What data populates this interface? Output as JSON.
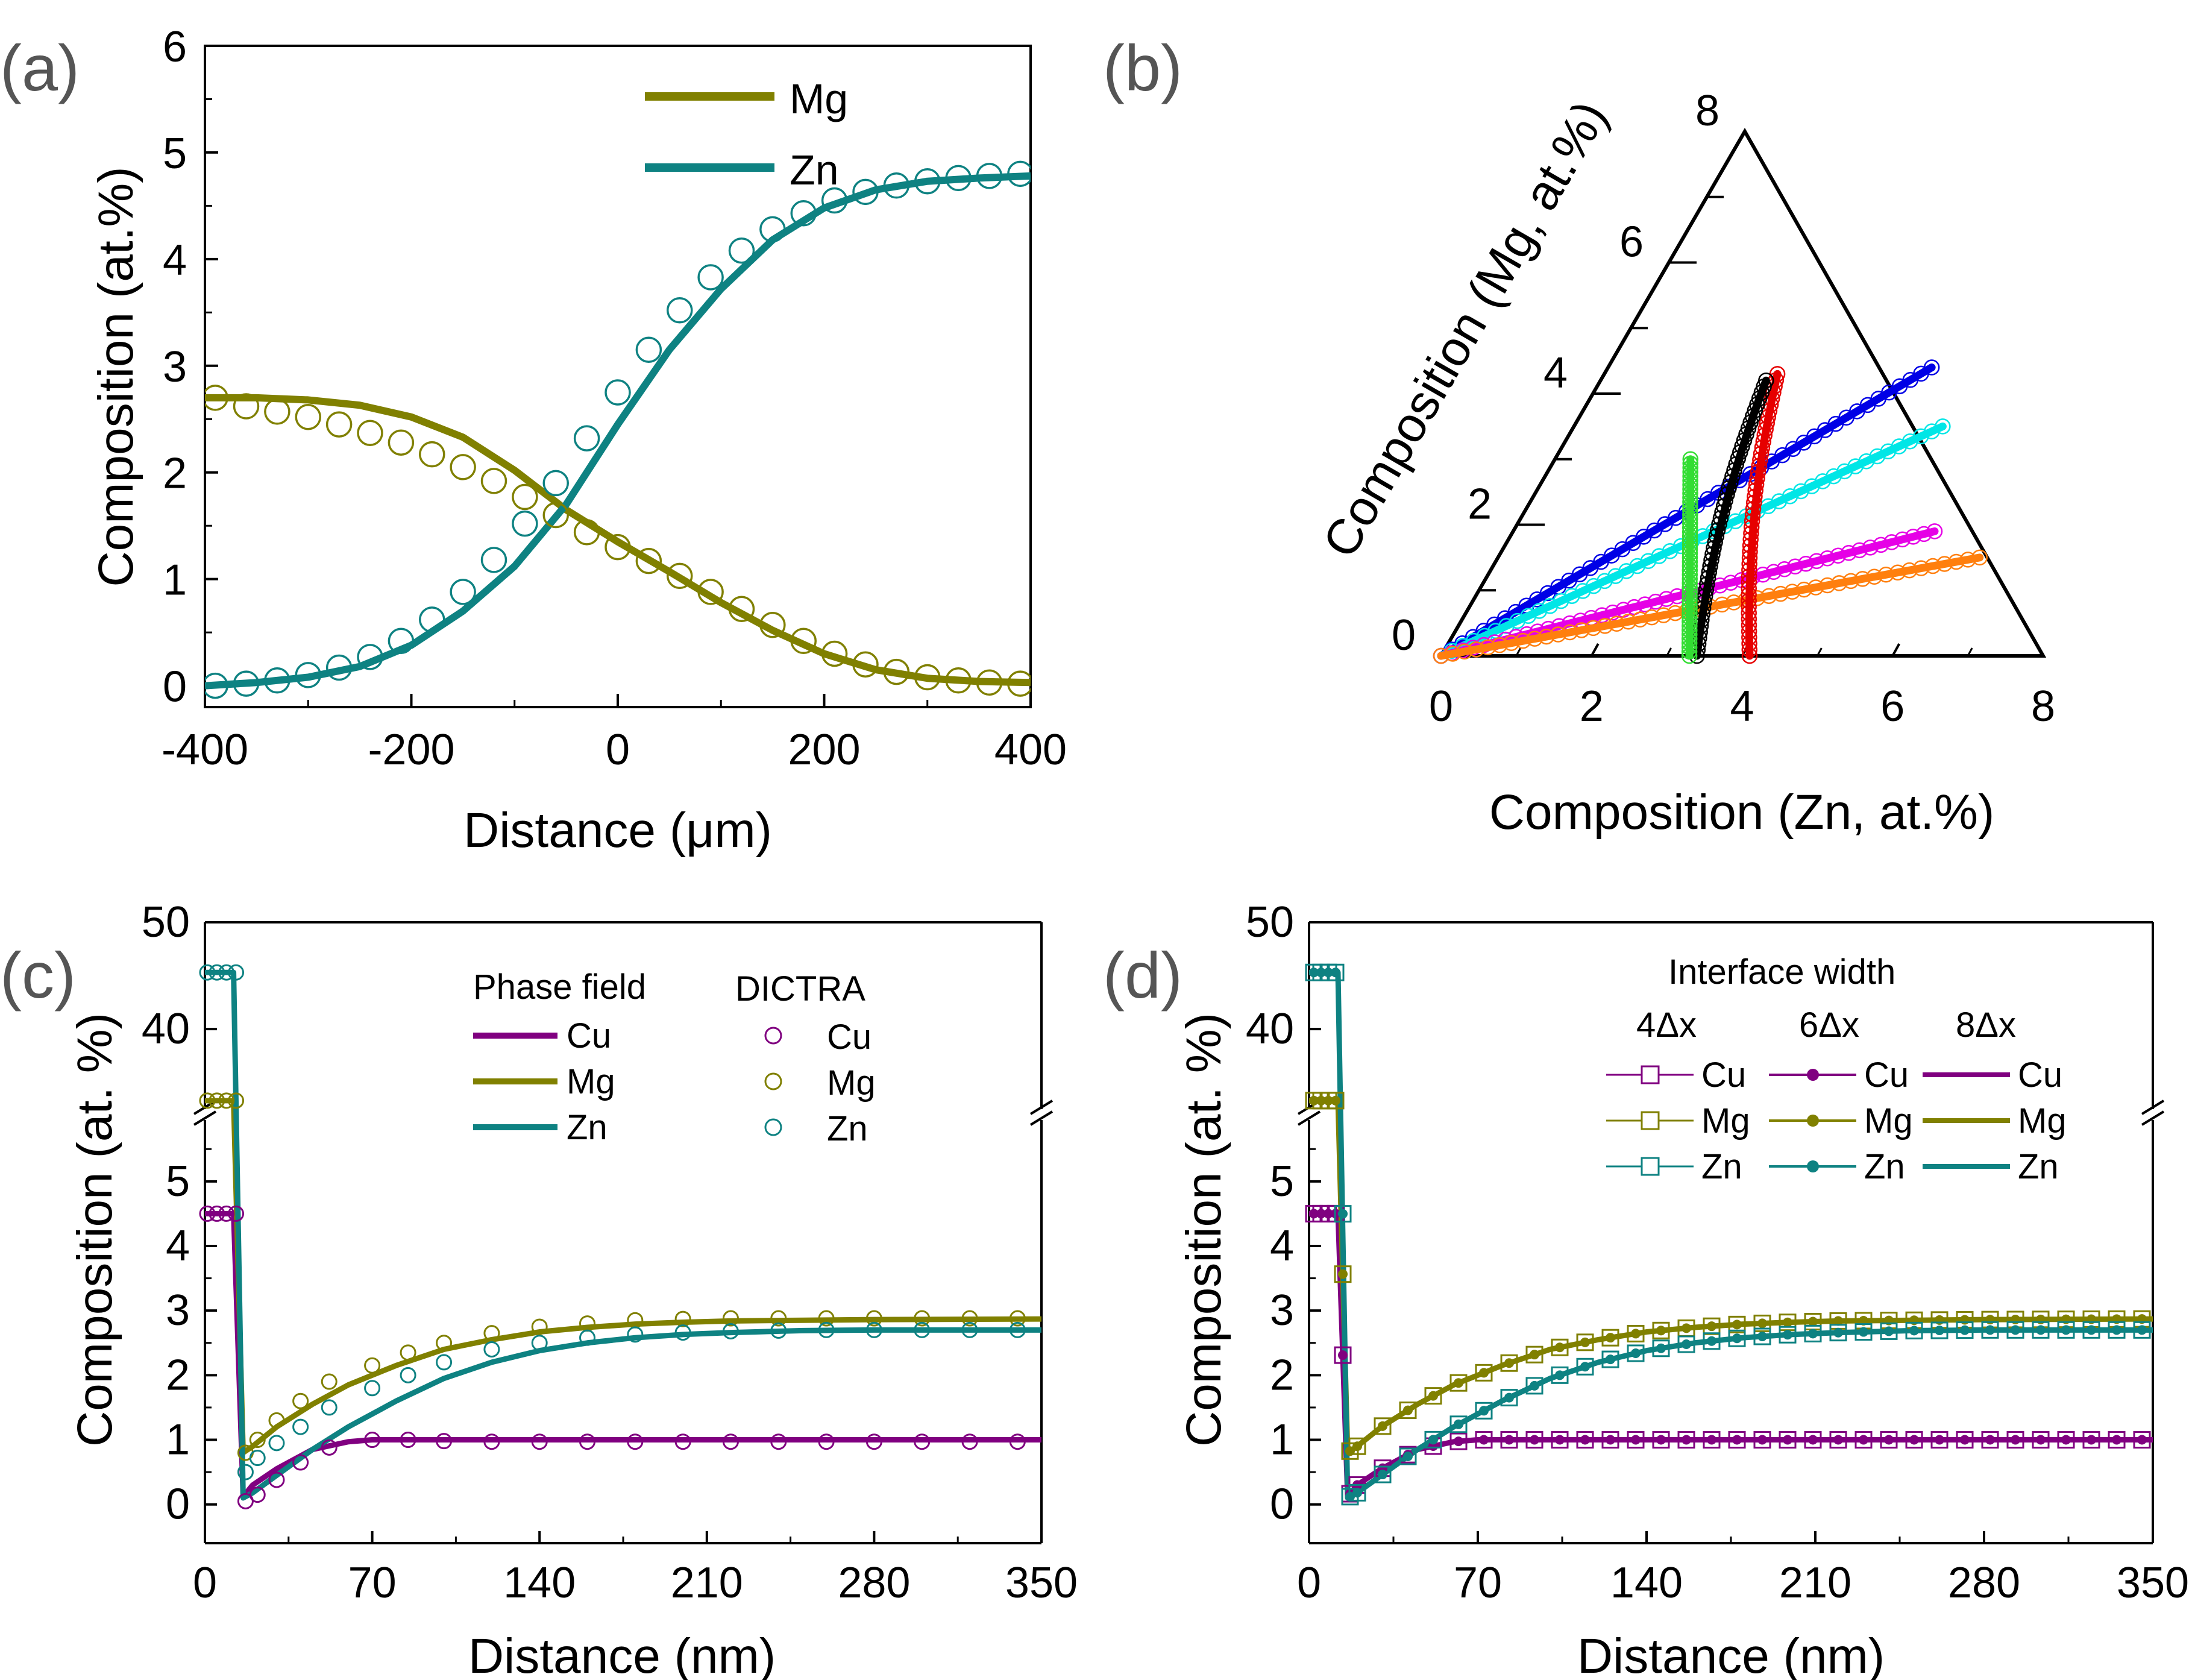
{
  "colors": {
    "Mg": "#808000",
    "Zn": "#0e8282",
    "Cu": "#800080",
    "blue": "#0000e6",
    "cyan": "#00e6e6",
    "magenta": "#e600e6",
    "orange": "#ff7f0e",
    "red": "#e60000",
    "black": "#000000",
    "green": "#33dd33"
  },
  "chart_data": [
    {
      "id": "a",
      "panel_label": "(a)",
      "type": "line",
      "xlabel": "Distance (μm)",
      "ylabel": "Composition (at.%)",
      "xlim": [
        -400,
        400
      ],
      "ylim": [
        -0.2,
        6
      ],
      "xticks": [
        -400,
        -200,
        0,
        200,
        400
      ],
      "yticks": [
        0,
        1,
        2,
        3,
        4,
        5,
        6
      ],
      "legend": [
        "Mg",
        "Zn"
      ],
      "legend_position": "top-right",
      "series": [
        {
          "name": "Mg",
          "role": "line",
          "x": [
            -400,
            -350,
            -300,
            -250,
            -200,
            -150,
            -100,
            -50,
            0,
            50,
            100,
            150,
            200,
            250,
            300,
            350,
            400
          ],
          "y": [
            2.7,
            2.7,
            2.68,
            2.63,
            2.52,
            2.33,
            2.02,
            1.65,
            1.35,
            1.07,
            0.78,
            0.52,
            0.3,
            0.15,
            0.07,
            0.04,
            0.03
          ]
        },
        {
          "name": "Zn",
          "role": "line",
          "x": [
            -400,
            -350,
            -300,
            -250,
            -200,
            -150,
            -100,
            -50,
            0,
            50,
            100,
            150,
            200,
            250,
            300,
            350,
            400
          ],
          "y": [
            0.0,
            0.03,
            0.08,
            0.18,
            0.38,
            0.7,
            1.12,
            1.7,
            2.45,
            3.15,
            3.72,
            4.18,
            4.48,
            4.65,
            4.73,
            4.76,
            4.78
          ]
        },
        {
          "name": "Mg",
          "role": "markers",
          "x": [
            -390,
            -360,
            -330,
            -300,
            -270,
            -240,
            -210,
            -180,
            -150,
            -120,
            -90,
            -60,
            -30,
            0,
            30,
            60,
            90,
            120,
            150,
            180,
            210,
            240,
            270,
            300,
            330,
            360,
            390
          ],
          "y": [
            2.7,
            2.62,
            2.57,
            2.52,
            2.45,
            2.37,
            2.28,
            2.17,
            2.05,
            1.92,
            1.77,
            1.6,
            1.44,
            1.3,
            1.17,
            1.03,
            0.88,
            0.72,
            0.57,
            0.42,
            0.3,
            0.2,
            0.13,
            0.08,
            0.05,
            0.03,
            0.02
          ]
        },
        {
          "name": "Zn",
          "role": "markers",
          "x": [
            -390,
            -360,
            -330,
            -300,
            -270,
            -240,
            -210,
            -180,
            -150,
            -120,
            -90,
            -60,
            -30,
            0,
            30,
            60,
            90,
            120,
            150,
            180,
            210,
            240,
            270,
            300,
            330,
            360,
            390
          ],
          "y": [
            0.0,
            0.02,
            0.05,
            0.1,
            0.17,
            0.27,
            0.42,
            0.62,
            0.88,
            1.18,
            1.52,
            1.9,
            2.32,
            2.75,
            3.15,
            3.52,
            3.83,
            4.08,
            4.28,
            4.43,
            4.55,
            4.63,
            4.69,
            4.73,
            4.76,
            4.78,
            4.8
          ]
        }
      ]
    },
    {
      "id": "b",
      "panel_label": "(b)",
      "type": "ternary",
      "xlabel": "Composition (Zn, at.%)",
      "ylabel": "Composition (Mg, at.%)",
      "axis_range": [
        0,
        8
      ],
      "bottom_ticks": [
        0,
        2,
        4,
        6,
        8
      ],
      "left_ticks": [
        0,
        2,
        4,
        6,
        8
      ],
      "series": [
        {
          "name": "blue",
          "from": [
            0,
            0
          ],
          "to": [
            4.3,
            4.4
          ]
        },
        {
          "name": "cyan",
          "from": [
            0,
            0
          ],
          "to": [
            4.9,
            3.5
          ]
        },
        {
          "name": "magenta",
          "from": [
            0,
            0
          ],
          "to": [
            5.6,
            1.9
          ]
        },
        {
          "name": "orange",
          "from": [
            0,
            0
          ],
          "to": [
            6.4,
            1.5
          ]
        },
        {
          "name": "red",
          "from": [
            4.1,
            0
          ],
          "to": [
            2.3,
            4.3
          ]
        },
        {
          "name": "black",
          "from": [
            3.4,
            0
          ],
          "to": [
            2.2,
            4.2
          ]
        },
        {
          "name": "green",
          "from": [
            3.3,
            0
          ],
          "to": [
            1.8,
            3.0
          ]
        }
      ]
    },
    {
      "id": "c",
      "panel_label": "(c)",
      "type": "line",
      "xlabel": "Distance (nm)",
      "ylabel": "Composition (at. %)",
      "xlim": [
        0,
        350
      ],
      "xticks": [
        0,
        70,
        140,
        210,
        280,
        350
      ],
      "yticks_lower": [
        0,
        1,
        2,
        3,
        4,
        5
      ],
      "yticks_upper": [
        40,
        50
      ],
      "legend_titles": [
        "Phase field",
        "DICTRA"
      ],
      "legend": [
        "Cu",
        "Mg",
        "Zn"
      ],
      "legend_position": "top-right",
      "series": [
        {
          "name": "Cu",
          "role": "line",
          "x": [
            0,
            12,
            16,
            20,
            30,
            45,
            60,
            70,
            100,
            150,
            200,
            250,
            300,
            350
          ],
          "y": [
            4.5,
            4.5,
            0.12,
            0.3,
            0.55,
            0.85,
            0.97,
            1.0,
            1.0,
            1.0,
            1.0,
            1.0,
            1.0,
            1.0
          ]
        },
        {
          "name": "Mg",
          "role": "line",
          "x": [
            0,
            12,
            16,
            20,
            30,
            45,
            60,
            80,
            100,
            120,
            140,
            160,
            180,
            200,
            220,
            250,
            280,
            350
          ],
          "y": [
            33.3,
            33.3,
            0.8,
            0.9,
            1.2,
            1.55,
            1.85,
            2.15,
            2.4,
            2.55,
            2.67,
            2.74,
            2.79,
            2.82,
            2.84,
            2.85,
            2.86,
            2.87
          ]
        },
        {
          "name": "Zn",
          "role": "line",
          "x": [
            0,
            12,
            16,
            20,
            30,
            45,
            60,
            80,
            100,
            120,
            140,
            160,
            180,
            200,
            220,
            250,
            280,
            350
          ],
          "y": [
            45.3,
            45.3,
            0.1,
            0.18,
            0.45,
            0.85,
            1.2,
            1.6,
            1.95,
            2.2,
            2.38,
            2.5,
            2.58,
            2.63,
            2.66,
            2.69,
            2.7,
            2.7
          ]
        },
        {
          "name": "Cu",
          "role": "markers",
          "x": [
            1,
            5,
            9,
            13,
            17,
            22,
            30,
            40,
            52,
            70,
            85,
            100,
            120,
            140,
            160,
            180,
            200,
            220,
            240,
            260,
            280,
            300,
            320,
            340
          ],
          "y": [
            4.5,
            4.5,
            4.5,
            4.5,
            0.05,
            0.15,
            0.38,
            0.65,
            0.88,
            1.0,
            1.0,
            0.98,
            0.97,
            0.97,
            0.97,
            0.97,
            0.97,
            0.97,
            0.97,
            0.97,
            0.97,
            0.97,
            0.97,
            0.97
          ]
        },
        {
          "name": "Mg",
          "role": "markers",
          "x": [
            1,
            5,
            9,
            13,
            17,
            22,
            30,
            40,
            52,
            70,
            85,
            100,
            120,
            140,
            160,
            180,
            200,
            220,
            240,
            260,
            280,
            300,
            320,
            340
          ],
          "y": [
            33.3,
            33.3,
            33.3,
            33.3,
            0.8,
            1.0,
            1.3,
            1.6,
            1.9,
            2.15,
            2.35,
            2.5,
            2.65,
            2.75,
            2.8,
            2.85,
            2.87,
            2.88,
            2.88,
            2.88,
            2.88,
            2.88,
            2.88,
            2.88
          ]
        },
        {
          "name": "Zn",
          "role": "markers",
          "x": [
            1,
            5,
            9,
            13,
            17,
            22,
            30,
            40,
            52,
            70,
            85,
            100,
            120,
            140,
            160,
            180,
            200,
            220,
            240,
            260,
            280,
            300,
            320,
            340
          ],
          "y": [
            45.3,
            45.3,
            45.3,
            45.3,
            0.5,
            0.72,
            0.95,
            1.2,
            1.5,
            1.8,
            2.0,
            2.2,
            2.4,
            2.5,
            2.58,
            2.63,
            2.66,
            2.68,
            2.69,
            2.7,
            2.7,
            2.7,
            2.7,
            2.7
          ]
        }
      ]
    },
    {
      "id": "d",
      "panel_label": "(d)",
      "type": "line",
      "xlabel": "Distance (nm)",
      "ylabel": "Composition (at. %)",
      "xlim": [
        0,
        350
      ],
      "xticks": [
        0,
        70,
        140,
        210,
        280,
        350
      ],
      "yticks_lower": [
        0,
        1,
        2,
        3,
        4,
        5
      ],
      "yticks_upper": [
        40,
        50
      ],
      "legend_title": "Interface width",
      "legend_groups": [
        "4Δx",
        "6Δx",
        "8Δx"
      ],
      "legend": [
        "Cu",
        "Mg",
        "Zn"
      ],
      "legend_position": "top-right",
      "series": [
        {
          "name": "Cu",
          "role": "line",
          "x": [
            0,
            12,
            16,
            20,
            30,
            45,
            60,
            70,
            100,
            150,
            200,
            250,
            300,
            350
          ],
          "y": [
            4.5,
            4.5,
            0.12,
            0.3,
            0.55,
            0.85,
            0.97,
            1.0,
            1.0,
            1.0,
            1.0,
            1.0,
            1.0,
            1.0
          ]
        },
        {
          "name": "Mg",
          "role": "line",
          "x": [
            0,
            12,
            16,
            20,
            30,
            45,
            60,
            80,
            100,
            120,
            140,
            160,
            180,
            200,
            220,
            250,
            280,
            350
          ],
          "y": [
            33.3,
            33.3,
            0.8,
            0.9,
            1.2,
            1.55,
            1.85,
            2.15,
            2.4,
            2.55,
            2.67,
            2.74,
            2.79,
            2.82,
            2.84,
            2.85,
            2.86,
            2.87
          ]
        },
        {
          "name": "Zn",
          "role": "line",
          "x": [
            0,
            12,
            16,
            20,
            30,
            45,
            60,
            80,
            100,
            120,
            140,
            160,
            180,
            200,
            220,
            250,
            280,
            350
          ],
          "y": [
            45.3,
            45.3,
            0.1,
            0.18,
            0.45,
            0.85,
            1.2,
            1.6,
            1.95,
            2.2,
            2.38,
            2.5,
            2.58,
            2.63,
            2.66,
            2.69,
            2.7,
            2.7
          ]
        }
      ]
    }
  ]
}
